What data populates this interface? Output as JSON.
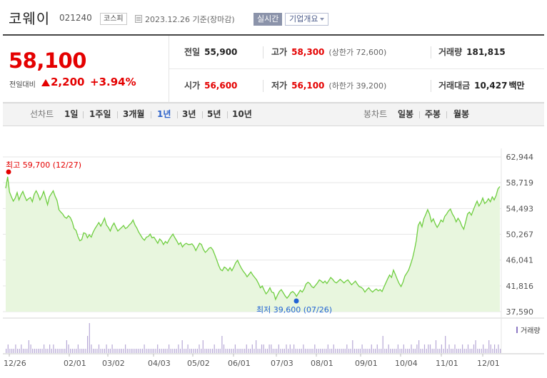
{
  "header": {
    "name": "코웨이",
    "code": "021240",
    "market": "코스피",
    "date_text": "2023.12.26 기준(장마감)",
    "realtime_label": "실시간",
    "company_label": "기업개요"
  },
  "quote": {
    "price": "58,100",
    "prev_label": "전일대비",
    "change": "2,200",
    "change_rate": "+3.94%",
    "prev_close_label": "전일",
    "prev_close": "55,900",
    "high_label": "고가",
    "high": "58,300",
    "upper_limit": "(상한가 72,600)",
    "volume_label": "거래량",
    "volume": "181,815",
    "open_label": "시가",
    "open": "56,600",
    "low_label": "저가",
    "low": "56,100",
    "lower_limit": "(하한가 39,200)",
    "amount_label": "거래대금",
    "amount": "10,427",
    "amount_unit": "백만"
  },
  "toolbar": {
    "line_label": "선차트",
    "periods": [
      "1일",
      "1주일",
      "3개월",
      "1년",
      "3년",
      "5년",
      "10년"
    ],
    "active_period": "1년",
    "candle_label": "봉차트",
    "candles": [
      "일봉",
      "주봉",
      "월봉"
    ]
  },
  "chart_data": {
    "type": "area",
    "y_ticks": [
      "62,944",
      "58,719",
      "54,493",
      "50,267",
      "46,041",
      "41,816",
      "37,590"
    ],
    "ylim": [
      37590,
      62944
    ],
    "x_ticks": [
      "12/26",
      "02/01",
      "03/02",
      "04/03",
      "05/02",
      "06/01",
      "07/03",
      "08/01",
      "09/01",
      "10/04",
      "11/01",
      "12/01"
    ],
    "max_annotation": "최고 59,700 (12/27)",
    "min_annotation": "최저 39,600 (07/26)",
    "volume_legend": "거래량",
    "line_color": "#6fce40",
    "fill_color": "#e8f6de",
    "up_color": "#e40000",
    "low_color": "#2264d4",
    "series": [
      {
        "values": [
          57800,
          59700,
          57200,
          56400,
          55700,
          56200,
          57100,
          55900,
          56700,
          57300,
          56500,
          55800,
          56100,
          56300,
          55600,
          56800,
          57400,
          56800,
          55900,
          56500,
          57300,
          56200,
          55100,
          56400,
          56900,
          57400,
          56500,
          55800,
          54300,
          53900,
          53600,
          53100,
          52900,
          53300,
          53000,
          52300,
          51200,
          50900,
          49900,
          49200,
          49400,
          50500,
          50400,
          49700,
          50200,
          49800,
          50600,
          51200,
          51700,
          52200,
          51600,
          52200,
          52900,
          51800,
          51400,
          50800,
          51600,
          52100,
          51400,
          50800,
          51100,
          51400,
          51700,
          51200,
          51400,
          51800,
          52100,
          52600,
          51800,
          51300,
          50600,
          50100,
          49600,
          49300,
          49800,
          49900,
          50300,
          49700,
          49800,
          49300,
          48800,
          49500,
          49200,
          48600,
          49100,
          48800,
          49400,
          49900,
          50300,
          49700,
          49200,
          48600,
          48900,
          48200,
          48600,
          48800,
          48600,
          48600,
          48700,
          48300,
          47600,
          48200,
          48800,
          48600,
          47800,
          47300,
          47600,
          48000,
          48100,
          47700,
          46900,
          46100,
          45200,
          44500,
          44300,
          44900,
          44700,
          44300,
          44800,
          44300,
          44900,
          45600,
          46000,
          45300,
          44700,
          44200,
          43800,
          43300,
          43700,
          44100,
          43600,
          43200,
          42800,
          42200,
          41500,
          41800,
          41100,
          40500,
          40900,
          41500,
          40800,
          40700,
          39600,
          40300,
          40900,
          41200,
          40700,
          40200,
          39800,
          40200,
          40700,
          40900,
          40600,
          40100,
          40600,
          41100,
          40800,
          41300,
          42100,
          42400,
          42200,
          41700,
          41500,
          41900,
          42300,
          42800,
          42600,
          42300,
          42600,
          42200,
          42700,
          43200,
          42900,
          42500,
          42300,
          42600,
          42900,
          42600,
          42300,
          42600,
          42800,
          42400,
          42000,
          42300,
          42600,
          42100,
          41700,
          41600,
          41300,
          40800,
          41200,
          41500,
          41100,
          40800,
          41100,
          41300,
          41000,
          41200,
          40900,
          41600,
          42300,
          43000,
          43600,
          43200,
          44400,
          43700,
          42900,
          42200,
          41700,
          42400,
          43400,
          43900,
          44400,
          45300,
          46300,
          47600,
          49200,
          51700,
          52300,
          51500,
          52800,
          53500,
          54300,
          53600,
          52300,
          52800,
          52000,
          51400,
          51900,
          52600,
          52300,
          53200,
          53600,
          54100,
          54400,
          53600,
          53100,
          52300,
          52900,
          52400,
          51600,
          51100,
          52300,
          53600,
          53900,
          53400,
          54200,
          55000,
          55700,
          54900,
          55400,
          56200,
          55300,
          55600,
          56100,
          55600,
          56400,
          55900,
          56600,
          57700,
          58100
        ]
      }
    ],
    "volume": [
      1,
      2,
      1,
      1,
      1,
      2,
      1,
      1,
      2,
      1,
      1,
      1,
      3,
      2,
      1,
      1,
      1,
      1,
      1,
      1,
      2,
      1,
      1,
      2,
      1,
      2,
      1,
      1,
      1,
      1,
      1,
      1,
      3,
      2,
      1,
      1,
      1,
      1,
      2,
      1,
      1,
      1,
      1,
      4,
      7,
      2,
      1,
      1,
      1,
      2,
      1,
      1,
      1,
      2,
      1,
      1,
      2,
      1,
      1,
      1,
      1,
      1,
      1,
      2,
      1,
      1,
      1,
      1,
      1,
      1,
      1,
      1,
      1,
      2,
      1,
      1,
      1,
      1,
      1,
      1,
      2,
      1,
      1,
      1,
      1,
      1,
      2,
      1,
      1,
      1,
      1,
      2,
      1,
      3,
      1,
      1,
      2,
      1,
      1,
      1,
      1,
      1,
      2,
      1,
      3,
      1,
      1,
      1,
      1,
      1,
      2,
      1,
      1,
      1,
      4,
      2,
      1,
      1,
      1,
      1,
      1,
      2,
      1,
      1,
      1,
      1,
      1,
      2,
      1,
      1,
      2,
      1,
      3,
      1,
      1,
      2,
      2,
      1,
      1,
      2,
      2,
      1,
      1,
      1,
      2,
      1,
      1,
      1,
      2,
      1,
      2,
      1,
      2,
      1,
      1,
      1,
      1,
      2,
      1,
      1,
      1,
      1,
      1,
      2,
      1,
      1,
      1,
      1,
      1,
      1,
      2,
      1,
      1,
      2,
      1,
      1,
      1,
      1,
      1,
      1,
      2,
      1,
      1,
      3,
      1,
      1,
      1,
      1,
      2,
      1,
      1,
      1,
      1,
      2,
      1,
      1,
      2,
      1,
      1,
      4,
      1,
      1,
      2,
      1,
      1,
      1,
      1,
      2,
      1,
      1,
      2,
      1,
      1,
      1,
      2,
      1,
      1,
      2,
      3,
      1,
      1,
      2,
      1,
      2,
      2,
      1,
      1,
      3,
      1,
      1,
      2,
      1,
      4,
      1,
      2,
      1,
      1,
      2,
      1,
      1,
      1,
      2,
      1,
      1,
      2,
      1,
      1,
      2,
      3,
      1,
      1,
      1,
      2,
      1,
      1,
      3,
      2,
      1,
      2,
      1,
      2,
      1
    ]
  }
}
